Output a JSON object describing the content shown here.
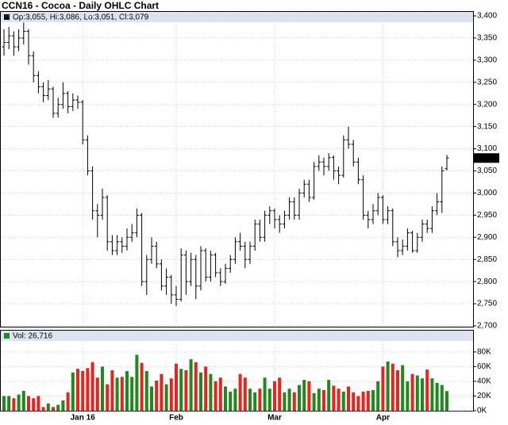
{
  "chart_data": {
    "type": "ohlc",
    "title": "CCN16 - Cocoa - Daily OHLC Chart",
    "legend_text": "Op:3,055, Hi:3,086, Lo:3,051, Cl:3,079",
    "last_label": "3,079",
    "color": "#000000",
    "grid": true,
    "categories": [
      null,
      null,
      null,
      null,
      null,
      null,
      null,
      null,
      null,
      null,
      null,
      null,
      null,
      null,
      null,
      null,
      "Jan 16",
      null,
      null,
      null,
      null,
      null,
      null,
      null,
      null,
      null,
      null,
      null,
      null,
      null,
      null,
      null,
      null,
      null,
      null,
      "Feb",
      null,
      null,
      null,
      null,
      null,
      null,
      null,
      null,
      null,
      null,
      null,
      null,
      null,
      null,
      null,
      null,
      null,
      null,
      null,
      "Mar",
      null,
      null,
      null,
      null,
      null,
      null,
      null,
      null,
      null,
      null,
      null,
      null,
      null,
      null,
      null,
      null,
      null,
      null,
      null,
      null,
      null,
      "Apr",
      null,
      null,
      null,
      null,
      null,
      null,
      null,
      null,
      null,
      null,
      null,
      null,
      null
    ],
    "open": [
      3330,
      3340,
      3355,
      3330,
      3350,
      3365,
      3310,
      3265,
      3240,
      3220,
      3235,
      3180,
      3200,
      3225,
      3195,
      3210,
      3205,
      3120,
      3050,
      2960,
      2950,
      2990,
      2890,
      2870,
      2890,
      2880,
      2900,
      2910,
      2950,
      2800,
      2850,
      2880,
      2840,
      2790,
      2810,
      2770,
      2760,
      2860,
      2800,
      2850,
      2790,
      2870,
      2810,
      2860,
      2820,
      2800,
      2830,
      2850,
      2890,
      2880,
      2850,
      2880,
      2930,
      2900,
      2950,
      2960,
      2940,
      2930,
      2950,
      2980,
      2950,
      3000,
      3020,
      2990,
      3060,
      3070,
      3060,
      3080,
      3050,
      3040,
      3120,
      3110,
      3070,
      3030,
      2950,
      2940,
      2960,
      2990,
      2940,
      2960,
      2890,
      2870,
      2880,
      2910,
      2870,
      2900,
      2930,
      2920,
      2960,
      2980,
      3055
    ],
    "high": [
      3370,
      3375,
      3365,
      3370,
      3385,
      3370,
      3320,
      3275,
      3250,
      3255,
      3240,
      3215,
      3250,
      3230,
      3225,
      3220,
      3210,
      3130,
      3060,
      2975,
      3010,
      2995,
      2905,
      2905,
      2900,
      2920,
      2930,
      2965,
      2955,
      2860,
      2900,
      2890,
      2850,
      2830,
      2815,
      2790,
      2875,
      2870,
      2865,
      2860,
      2880,
      2875,
      2870,
      2865,
      2830,
      2840,
      2860,
      2900,
      2910,
      2890,
      2890,
      2940,
      2940,
      2960,
      2970,
      2965,
      2950,
      2960,
      2990,
      2990,
      3010,
      3030,
      3030,
      3070,
      3085,
      3080,
      3090,
      3085,
      3060,
      3130,
      3150,
      3120,
      3080,
      3040,
      2960,
      2975,
      3000,
      2995,
      2970,
      2965,
      2900,
      2895,
      2920,
      2915,
      2910,
      2940,
      2940,
      2970,
      3000,
      3060,
      3086
    ],
    "low": [
      3310,
      3325,
      3310,
      3320,
      3335,
      3290,
      3250,
      3225,
      3205,
      3210,
      3170,
      3170,
      3190,
      3180,
      3185,
      3190,
      3110,
      3040,
      2940,
      2900,
      2940,
      2870,
      2860,
      2860,
      2865,
      2870,
      2890,
      2900,
      2790,
      2770,
      2840,
      2830,
      2780,
      2770,
      2750,
      2745,
      2755,
      2770,
      2790,
      2760,
      2780,
      2800,
      2800,
      2810,
      2790,
      2795,
      2820,
      2840,
      2870,
      2830,
      2840,
      2870,
      2890,
      2890,
      2930,
      2920,
      2910,
      2920,
      2940,
      2940,
      2940,
      2990,
      2980,
      2985,
      3050,
      3040,
      3050,
      3030,
      3020,
      3035,
      3100,
      3060,
      3020,
      2940,
      2920,
      2930,
      2950,
      2930,
      2930,
      2880,
      2855,
      2860,
      2870,
      2865,
      2865,
      2890,
      2910,
      2910,
      2950,
      2955,
      3051
    ],
    "close": [
      3340,
      3355,
      3330,
      3350,
      3365,
      3310,
      3265,
      3240,
      3220,
      3235,
      3180,
      3200,
      3225,
      3195,
      3210,
      3205,
      3120,
      3050,
      2960,
      2950,
      2990,
      2890,
      2870,
      2890,
      2880,
      2900,
      2910,
      2950,
      2800,
      2850,
      2880,
      2840,
      2790,
      2810,
      2770,
      2760,
      2860,
      2800,
      2850,
      2790,
      2870,
      2810,
      2860,
      2820,
      2800,
      2830,
      2850,
      2890,
      2880,
      2850,
      2880,
      2930,
      2900,
      2950,
      2960,
      2940,
      2930,
      2950,
      2980,
      2950,
      3000,
      3020,
      2990,
      3060,
      3070,
      3060,
      3080,
      3050,
      3040,
      3120,
      3110,
      3070,
      3030,
      2950,
      2940,
      2960,
      2990,
      2940,
      2960,
      2890,
      2870,
      2880,
      2910,
      2870,
      2900,
      2930,
      2920,
      2960,
      2980,
      3050,
      3079
    ],
    "ylim": [
      2700,
      3400
    ],
    "yticks": [
      {
        "value": 2700,
        "label": "2,700"
      },
      {
        "value": 2750,
        "label": "2,750"
      },
      {
        "value": 2800,
        "label": "2,800"
      },
      {
        "value": 2850,
        "label": "2,850"
      },
      {
        "value": 2900,
        "label": "2,900"
      },
      {
        "value": 2950,
        "label": "2,950"
      },
      {
        "value": 3000,
        "label": "3,000"
      },
      {
        "value": 3050,
        "label": "3,050"
      },
      {
        "value": 3100,
        "label": "3,100"
      },
      {
        "value": 3150,
        "label": "3,150"
      },
      {
        "value": 3200,
        "label": "3,200"
      },
      {
        "value": 3250,
        "label": "3,250"
      },
      {
        "value": 3300,
        "label": "3,300"
      },
      {
        "value": 3350,
        "label": "3,350"
      },
      {
        "value": 3400,
        "label": "3,400"
      }
    ],
    "volume": {
      "legend_text": "Vol: 26,716",
      "up_color": "#1e8a1e",
      "down_color": "#e8231e",
      "values": [
        20000,
        20000,
        17000,
        22000,
        27000,
        20000,
        17000,
        20000,
        5000,
        10000,
        5000,
        8000,
        14000,
        25000,
        52000,
        57000,
        54000,
        58000,
        66000,
        45000,
        60000,
        36000,
        55000,
        45000,
        46000,
        54000,
        46000,
        76000,
        65000,
        54000,
        33000,
        41000,
        50000,
        36000,
        44000,
        64000,
        57000,
        55000,
        70000,
        66000,
        52000,
        60000,
        50000,
        40000,
        45000,
        33000,
        26000,
        30000,
        50000,
        45000,
        30000,
        25000,
        30000,
        45000,
        30000,
        40000,
        45000,
        25000,
        30000,
        25000,
        35000,
        42000,
        40000,
        24000,
        30000,
        28000,
        42000,
        34000,
        30000,
        26000,
        33000,
        25000,
        20000,
        26000,
        27000,
        28000,
        40000,
        60000,
        67000,
        64000,
        55000,
        62000,
        40000,
        50000,
        48000,
        44000,
        56000,
        44000,
        38000,
        35000,
        26716
      ],
      "ylim": [
        0,
        110000
      ],
      "yticks": [
        {
          "value": 0,
          "label": "0K"
        },
        {
          "value": 20000,
          "label": "20K"
        },
        {
          "value": 40000,
          "label": "40K"
        },
        {
          "value": 60000,
          "label": "60K"
        },
        {
          "value": 80000,
          "label": "80K"
        }
      ]
    }
  }
}
